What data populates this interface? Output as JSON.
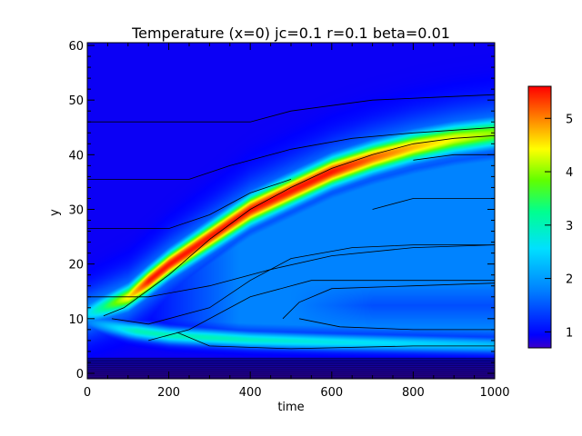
{
  "chart_data": {
    "type": "heatmap",
    "title": "Temperature (x=0) jc=0.1 r=0.1 beta=0.01",
    "xlabel": "time",
    "ylabel": "y",
    "xlim": [
      0,
      1000
    ],
    "ylim": [
      -1,
      60.5
    ],
    "x_ticks": [
      0,
      200,
      400,
      600,
      800,
      1000
    ],
    "y_ticks": [
      0,
      10,
      20,
      30,
      40,
      50,
      60
    ],
    "colorbar": {
      "range": [
        0.7,
        5.6
      ],
      "ticks": [
        1,
        2,
        3,
        4,
        5
      ],
      "colormap": "rainbow"
    },
    "field": {
      "background_value": 0.9,
      "ridge_centerline": [
        [
          0,
          11
        ],
        [
          100,
          14
        ],
        [
          200,
          20
        ],
        [
          300,
          25
        ],
        [
          400,
          30
        ],
        [
          500,
          33.5
        ],
        [
          600,
          37
        ],
        [
          700,
          39.5
        ],
        [
          800,
          41.5
        ],
        [
          900,
          43
        ],
        [
          1000,
          44
        ]
      ],
      "ridge_peak": 5.5,
      "lower_branch_centerline": [
        [
          0,
          9.5
        ],
        [
          100,
          8
        ],
        [
          200,
          7
        ],
        [
          400,
          6.2
        ],
        [
          600,
          5.8
        ],
        [
          800,
          5.5
        ],
        [
          1000,
          5.2
        ]
      ],
      "lower_branch_peak": 3.0,
      "inner_region_value": 1.8,
      "bottom_boundary_value": 0.7
    },
    "contour_lines": [
      [
        [
          0,
          14
        ],
        [
          150,
          14
        ],
        [
          300,
          16
        ],
        [
          450,
          19
        ],
        [
          600,
          21.5
        ],
        [
          800,
          23
        ],
        [
          1000,
          23.5
        ]
      ],
      [
        [
          0,
          26.5
        ],
        [
          200,
          26.5
        ],
        [
          300,
          29
        ],
        [
          400,
          33
        ],
        [
          500,
          35.5
        ]
      ],
      [
        [
          0,
          35.5
        ],
        [
          250,
          35.5
        ],
        [
          350,
          38
        ],
        [
          500,
          41
        ],
        [
          650,
          43
        ],
        [
          800,
          44
        ],
        [
          1000,
          45
        ]
      ],
      [
        [
          0,
          46
        ],
        [
          400,
          46
        ],
        [
          500,
          48
        ],
        [
          700,
          50
        ],
        [
          850,
          50.5
        ],
        [
          1000,
          51
        ]
      ],
      [
        [
          40,
          10.5
        ],
        [
          90,
          12
        ],
        [
          200,
          18
        ],
        [
          300,
          24.5
        ],
        [
          400,
          30
        ],
        [
          500,
          34
        ],
        [
          600,
          37.5
        ],
        [
          700,
          40
        ],
        [
          800,
          42
        ],
        [
          900,
          43
        ],
        [
          1000,
          43.5
        ]
      ],
      [
        [
          60,
          10
        ],
        [
          150,
          9
        ],
        [
          300,
          12
        ],
        [
          400,
          17
        ],
        [
          500,
          21
        ],
        [
          650,
          23
        ],
        [
          800,
          23.5
        ],
        [
          1000,
          23.5
        ]
      ],
      [
        [
          150,
          6
        ],
        [
          250,
          8
        ],
        [
          400,
          14
        ],
        [
          550,
          17
        ],
        [
          700,
          17
        ],
        [
          1000,
          17
        ]
      ],
      [
        [
          220,
          7.5
        ],
        [
          300,
          5
        ],
        [
          500,
          4.5
        ],
        [
          800,
          5
        ],
        [
          1000,
          5
        ]
      ],
      [
        [
          480,
          10
        ],
        [
          520,
          13
        ],
        [
          600,
          15.5
        ],
        [
          800,
          16
        ],
        [
          1000,
          16.5
        ]
      ],
      [
        [
          520,
          10
        ],
        [
          620,
          8.5
        ],
        [
          800,
          8
        ],
        [
          1000,
          8
        ]
      ],
      [
        [
          700,
          30
        ],
        [
          800,
          32
        ],
        [
          1000,
          32
        ]
      ],
      [
        [
          800,
          39
        ],
        [
          900,
          40
        ],
        [
          1000,
          40
        ]
      ]
    ]
  }
}
